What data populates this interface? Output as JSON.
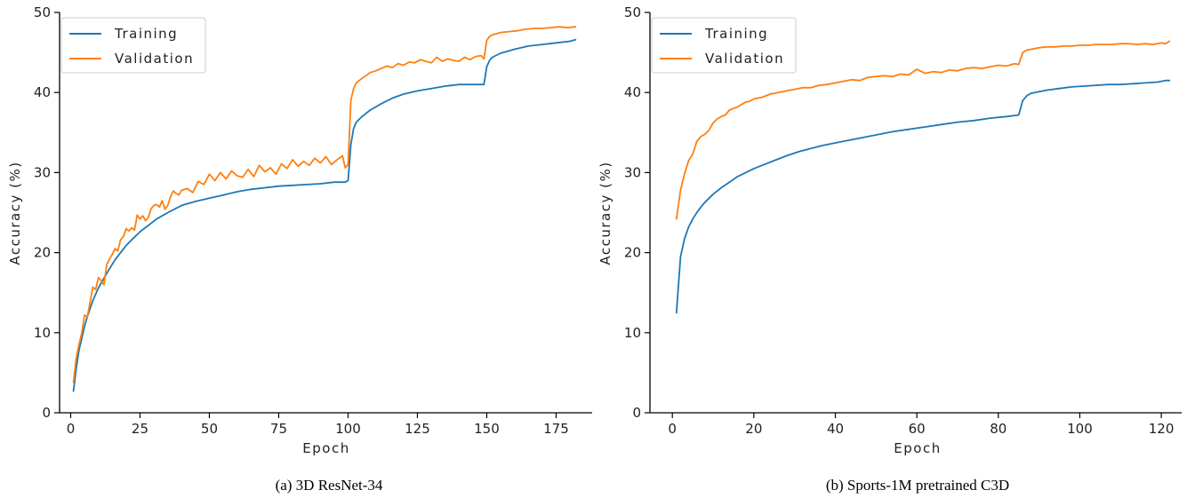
{
  "chart_data": [
    {
      "type": "line",
      "caption": "(a) 3D ResNet-34",
      "xlabel": "Epoch",
      "ylabel": "Accuracy (%)",
      "xlim": [
        -4,
        188
      ],
      "ylim": [
        0,
        50
      ],
      "xticks": [
        0,
        25,
        50,
        75,
        100,
        125,
        150,
        175
      ],
      "yticks": [
        0,
        10,
        20,
        30,
        40,
        50
      ],
      "grid": false,
      "legend_position": "top-left",
      "series": [
        {
          "name": "Training",
          "color": "#1f77b4",
          "x": [
            1,
            2,
            3,
            4,
            5,
            6,
            8,
            10,
            12,
            14,
            16,
            18,
            20,
            22,
            25,
            28,
            31,
            35,
            40,
            45,
            50,
            55,
            60,
            65,
            70,
            75,
            80,
            85,
            90,
            95,
            99,
            100,
            101,
            102,
            103,
            105,
            108,
            112,
            116,
            120,
            125,
            130,
            135,
            140,
            145,
            149,
            150,
            151,
            152,
            155,
            160,
            165,
            170,
            175,
            180,
            182
          ],
          "y": [
            2.7,
            5.5,
            7.8,
            9.3,
            10.8,
            12.0,
            14.0,
            15.6,
            16.8,
            18.0,
            19.1,
            20.0,
            20.9,
            21.6,
            22.6,
            23.4,
            24.2,
            25.0,
            25.9,
            26.4,
            26.8,
            27.2,
            27.6,
            27.9,
            28.1,
            28.3,
            28.4,
            28.5,
            28.6,
            28.8,
            28.8,
            29.0,
            33.5,
            35.5,
            36.3,
            37.0,
            37.8,
            38.6,
            39.3,
            39.8,
            40.2,
            40.5,
            40.8,
            41.0,
            41.0,
            41.0,
            43.2,
            44.0,
            44.4,
            44.9,
            45.4,
            45.8,
            46.0,
            46.2,
            46.4,
            46.6
          ]
        },
        {
          "name": "Validation",
          "color": "#ff7f0e",
          "x": [
            1,
            2,
            3,
            4,
            5,
            6,
            7,
            8,
            9,
            10,
            11,
            12,
            13,
            14,
            15,
            16,
            17,
            18,
            19,
            20,
            21,
            22,
            23,
            24,
            25,
            26,
            27,
            28,
            29,
            30,
            31,
            32,
            33,
            34,
            35,
            36,
            37,
            38,
            39,
            40,
            42,
            44,
            46,
            48,
            50,
            52,
            54,
            56,
            58,
            60,
            62,
            64,
            66,
            68,
            70,
            72,
            74,
            76,
            78,
            80,
            82,
            84,
            86,
            88,
            90,
            92,
            94,
            96,
            98,
            99,
            100,
            101,
            102,
            103,
            104,
            106,
            108,
            110,
            112,
            114,
            116,
            118,
            120,
            122,
            124,
            126,
            128,
            130,
            132,
            134,
            136,
            138,
            140,
            142,
            144,
            146,
            148,
            149,
            150,
            151,
            152,
            155,
            158,
            161,
            164,
            167,
            170,
            173,
            176,
            179,
            182
          ],
          "y": [
            3.8,
            6.8,
            8.5,
            10.0,
            12.2,
            12.0,
            13.8,
            15.7,
            15.4,
            16.9,
            16.5,
            16.0,
            18.5,
            19.2,
            19.8,
            20.5,
            20.2,
            21.6,
            22.0,
            23.0,
            22.7,
            23.1,
            22.8,
            24.7,
            24.2,
            24.6,
            24.0,
            24.4,
            25.5,
            25.9,
            26.0,
            25.7,
            26.5,
            25.4,
            25.9,
            27.0,
            27.7,
            27.4,
            27.2,
            27.8,
            28.0,
            27.5,
            28.9,
            28.5,
            29.8,
            29.0,
            30.0,
            29.2,
            30.2,
            29.6,
            29.4,
            30.4,
            29.5,
            30.9,
            30.1,
            30.6,
            29.8,
            31.1,
            30.5,
            31.6,
            30.8,
            31.4,
            30.9,
            31.8,
            31.2,
            32.0,
            31.0,
            31.6,
            32.1,
            30.6,
            31.0,
            39.0,
            40.5,
            41.2,
            41.5,
            42.0,
            42.5,
            42.7,
            43.0,
            43.3,
            43.1,
            43.6,
            43.4,
            43.8,
            43.7,
            44.1,
            43.9,
            43.7,
            44.4,
            43.9,
            44.2,
            44.0,
            43.9,
            44.4,
            44.1,
            44.5,
            44.6,
            44.2,
            46.5,
            47.0,
            47.2,
            47.5,
            47.6,
            47.7,
            47.9,
            48.0,
            48.0,
            48.1,
            48.2,
            48.1,
            48.2
          ]
        }
      ]
    },
    {
      "type": "line",
      "caption": "(b) Sports-1M pretrained C3D",
      "xlabel": "Epoch",
      "ylabel": "Accuracy (%)",
      "xlim": [
        -5.5,
        125
      ],
      "ylim": [
        0,
        50
      ],
      "xticks": [
        0,
        20,
        40,
        60,
        80,
        100,
        120
      ],
      "yticks": [
        0,
        10,
        20,
        30,
        40,
        50
      ],
      "grid": false,
      "legend_position": "top-left",
      "series": [
        {
          "name": "Training",
          "color": "#1f77b4",
          "x": [
            1,
            2,
            3,
            4,
            5,
            6,
            7,
            8,
            10,
            12,
            14,
            16,
            18,
            20,
            22,
            25,
            28,
            31,
            34,
            37,
            40,
            43,
            46,
            50,
            54,
            58,
            62,
            66,
            70,
            74,
            78,
            82,
            85,
            86,
            87,
            88,
            90,
            92,
            95,
            98,
            101,
            104,
            107,
            110,
            113,
            116,
            119,
            121,
            122
          ],
          "y": [
            12.5,
            19.5,
            21.8,
            23.2,
            24.2,
            25.0,
            25.7,
            26.3,
            27.3,
            28.1,
            28.8,
            29.5,
            30.0,
            30.5,
            30.9,
            31.5,
            32.1,
            32.6,
            33.0,
            33.4,
            33.7,
            34.0,
            34.3,
            34.7,
            35.1,
            35.4,
            35.7,
            36.0,
            36.3,
            36.5,
            36.8,
            37.0,
            37.2,
            39.0,
            39.6,
            39.9,
            40.1,
            40.3,
            40.5,
            40.7,
            40.8,
            40.9,
            41.0,
            41.0,
            41.1,
            41.2,
            41.3,
            41.5,
            41.5
          ]
        },
        {
          "name": "Validation",
          "color": "#ff7f0e",
          "x": [
            1,
            2,
            3,
            4,
            5,
            6,
            7,
            8,
            9,
            10,
            11,
            12,
            13,
            14,
            15,
            16,
            17,
            18,
            19,
            20,
            22,
            24,
            26,
            28,
            30,
            32,
            34,
            36,
            38,
            40,
            42,
            44,
            46,
            48,
            50,
            52,
            54,
            56,
            58,
            60,
            62,
            64,
            66,
            68,
            70,
            72,
            74,
            76,
            78,
            80,
            82,
            84,
            85,
            86,
            87,
            88,
            90,
            92,
            94,
            96,
            98,
            100,
            102,
            104,
            106,
            108,
            110,
            112,
            114,
            116,
            118,
            120,
            121,
            122
          ],
          "y": [
            24.2,
            27.8,
            29.9,
            31.5,
            32.3,
            33.9,
            34.5,
            34.8,
            35.3,
            36.2,
            36.7,
            37.0,
            37.2,
            37.8,
            38.0,
            38.2,
            38.5,
            38.8,
            38.9,
            39.2,
            39.4,
            39.8,
            40.0,
            40.2,
            40.4,
            40.6,
            40.6,
            40.9,
            41.0,
            41.2,
            41.4,
            41.6,
            41.5,
            41.9,
            42.0,
            42.1,
            42.0,
            42.3,
            42.2,
            42.9,
            42.4,
            42.6,
            42.5,
            42.8,
            42.7,
            43.0,
            43.1,
            43.0,
            43.2,
            43.4,
            43.3,
            43.6,
            43.5,
            45.0,
            45.3,
            45.4,
            45.6,
            45.7,
            45.7,
            45.8,
            45.8,
            45.9,
            45.9,
            46.0,
            46.0,
            46.0,
            46.1,
            46.1,
            46.0,
            46.1,
            46.0,
            46.2,
            46.1,
            46.4
          ]
        }
      ]
    }
  ]
}
